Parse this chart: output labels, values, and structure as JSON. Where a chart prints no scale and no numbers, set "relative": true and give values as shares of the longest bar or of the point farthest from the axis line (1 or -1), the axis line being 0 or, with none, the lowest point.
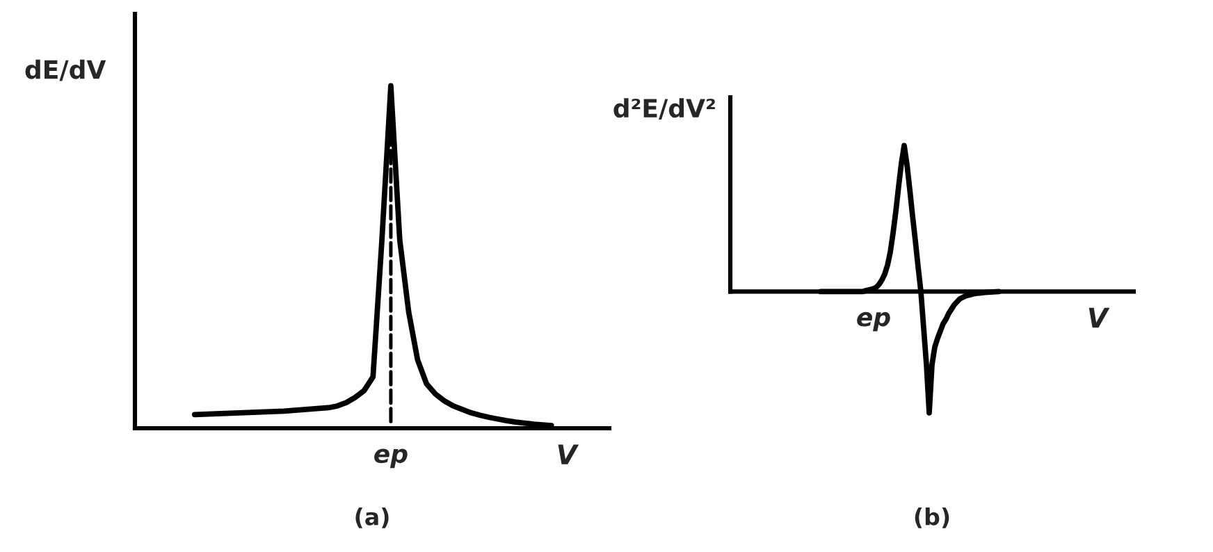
{
  "chart_data": [
    {
      "type": "line",
      "title": "(a)",
      "xlabel": "V",
      "ylabel": "dE/dV",
      "relative": true,
      "legend": false,
      "marker": "none",
      "line_style": "solid",
      "categories": [
        null,
        null,
        null,
        null,
        null,
        null,
        null,
        null,
        null,
        null,
        null,
        null,
        null,
        null,
        null,
        null,
        null,
        null,
        null,
        null,
        null,
        null,
        null,
        null,
        null,
        null,
        null,
        null,
        null,
        null,
        null,
        null,
        null,
        null,
        null,
        null,
        null,
        null,
        null,
        null,
        null
      ],
      "annotations": [
        "ep"
      ],
      "series": [
        {
          "color": "#000000",
          "values": [
            0.04,
            0.041,
            0.042,
            0.043,
            0.044,
            0.045,
            0.046,
            0.047,
            0.048,
            0.049,
            0.05,
            0.052,
            0.054,
            0.056,
            0.058,
            0.06,
            0.065,
            0.075,
            0.09,
            0.11,
            0.15,
            0.55,
            1,
            0.55,
            0.34,
            0.2,
            0.13,
            0.1,
            0.08,
            0.065,
            0.055,
            0.045,
            0.038,
            0.032,
            0.027,
            0.022,
            0.018,
            0.015,
            0.012,
            0.01,
            0.008
          ]
        }
      ]
    },
    {
      "type": "line",
      "title": "(b)",
      "xlabel": "V",
      "ylabel": "d²E/dV²",
      "relative": true,
      "legend": false,
      "marker": "none",
      "line_style": "solid",
      "categories": [
        null,
        null,
        null,
        null,
        null,
        null,
        null,
        null,
        null,
        null,
        null,
        null,
        null,
        null,
        null,
        null,
        null,
        null,
        null,
        null,
        null,
        null,
        null,
        null,
        null,
        null,
        null,
        null,
        null,
        null,
        null,
        null,
        null,
        null,
        null,
        null,
        null,
        null,
        null,
        null,
        null,
        null,
        null,
        null,
        null,
        null,
        null,
        null,
        null,
        null,
        null,
        null,
        null,
        null,
        null,
        null,
        null,
        null,
        null,
        null,
        null,
        null,
        null,
        null,
        null
      ],
      "annotations": [
        "ep"
      ],
      "series": [
        {
          "color": "#000000",
          "values": [
            0,
            0,
            0,
            0,
            0,
            0,
            0,
            0,
            0,
            0,
            0,
            0,
            0,
            0,
            0,
            0,
            0.005,
            0.01,
            0.015,
            0.02,
            0.03,
            0.05,
            0.08,
            0.12,
            0.18,
            0.27,
            0.4,
            0.55,
            0.72,
            0.88,
            1,
            0.87,
            0.7,
            0.52,
            0.35,
            0.17,
            0,
            -0.25,
            -0.5,
            -0.83,
            -0.5,
            -0.38,
            -0.32,
            -0.27,
            -0.22,
            -0.19,
            -0.15,
            -0.12,
            -0.09,
            -0.07,
            -0.05,
            -0.04,
            -0.03,
            -0.025,
            -0.02,
            -0.015,
            -0.012,
            -0.01,
            -0.008,
            -0.006,
            -0.004,
            -0.003,
            -0.002,
            -0.001,
            0
          ]
        }
      ]
    }
  ]
}
